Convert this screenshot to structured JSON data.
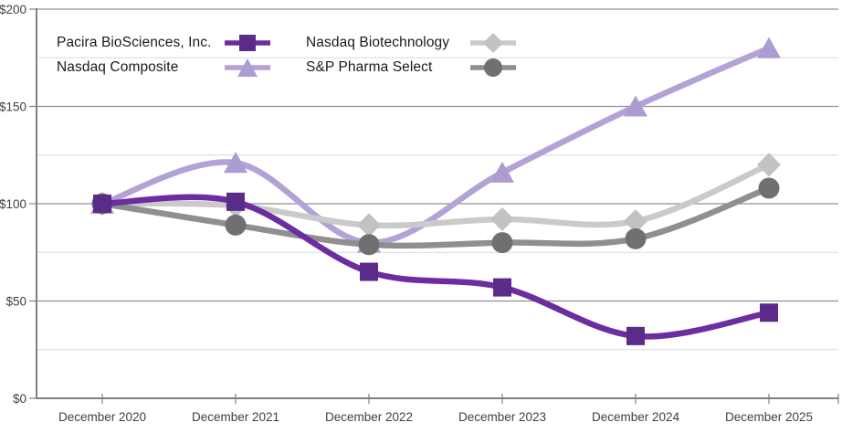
{
  "chart_data": {
    "type": "line",
    "title": "",
    "categories": [
      "December 2020",
      "December 2021",
      "December 2022",
      "December 2023",
      "December 2024",
      "December 2025"
    ],
    "y_axis": {
      "ylim": [
        0,
        200
      ],
      "major_ticks": [
        {
          "value": 0,
          "label": "$0"
        },
        {
          "value": 50,
          "label": "$50"
        },
        {
          "value": 100,
          "label": "$100"
        },
        {
          "value": 150,
          "label": "$150"
        },
        {
          "value": 200,
          "label": "$200"
        }
      ],
      "minor_gridlines": [
        25,
        75,
        125,
        175
      ]
    },
    "series": [
      {
        "name": "Pacira BioSciences, Inc.",
        "marker": "square",
        "line_color": "#6C2DA0",
        "marker_color": "#5B2B8A",
        "values": [
          100,
          101,
          65,
          57,
          32,
          44
        ],
        "z": 4
      },
      {
        "name": "Nasdaq Composite",
        "marker": "triangle",
        "line_color": "#B3A2D6",
        "marker_color": "#AC9CD2",
        "values": [
          100,
          121,
          80,
          116,
          150,
          180
        ],
        "z": 1
      },
      {
        "name": "Nasdaq Biotechnology",
        "marker": "diamond",
        "line_color": "#CACACA",
        "marker_color": "#C2C2C2",
        "values": [
          100,
          99,
          89,
          92,
          91,
          120
        ],
        "z": 2
      },
      {
        "name": "S&P Pharma Select",
        "marker": "circle",
        "line_color": "#8F8F8F",
        "marker_color": "#707070",
        "values": [
          100,
          89,
          79,
          80,
          82,
          108
        ],
        "z": 3
      }
    ],
    "legend": {
      "position": "top-left",
      "display_order": [
        0,
        2,
        1,
        3
      ]
    },
    "colors": {
      "grid_major": "#919191",
      "grid_minor": "#DADADA",
      "axis": "#808080",
      "axis_text": "#404040",
      "legend_text": "#1A1A1A",
      "background": "#FFFFFF"
    },
    "legend_on": true,
    "grid_on": true
  }
}
